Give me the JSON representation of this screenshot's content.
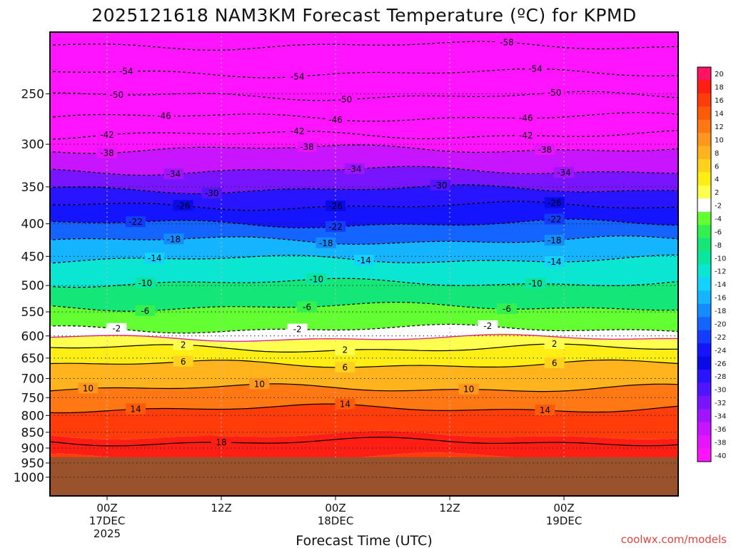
{
  "chart_data": {
    "type": "heatmap",
    "title": "2025121618 NAM3KM Forecast Temperature (ºC) for KPMD",
    "xlabel": "Forecast Time (UTC)",
    "ylabel": "",
    "credit": "coolwx.com/models",
    "x_range_hours": [
      -6,
      60
    ],
    "x_ticks": [
      {
        "hour": 0,
        "lines": [
          "00Z",
          "17DEC",
          "2025"
        ]
      },
      {
        "hour": 12,
        "lines": [
          "12Z"
        ]
      },
      {
        "hour": 24,
        "lines": [
          "00Z",
          "18DEC"
        ]
      },
      {
        "hour": 36,
        "lines": [
          "12Z"
        ]
      },
      {
        "hour": 48,
        "lines": [
          "00Z",
          "19DEC"
        ]
      }
    ],
    "y_scale": "log-pressure",
    "y_range_hpa": [
      1070,
      200
    ],
    "y_ticks": [
      250,
      300,
      350,
      400,
      450,
      500,
      550,
      600,
      650,
      700,
      750,
      800,
      850,
      900,
      950,
      1000
    ],
    "surface_pressure_hpa": 930,
    "colorbar": {
      "labels": [
        20,
        18,
        16,
        14,
        12,
        10,
        8,
        6,
        4,
        2,
        -2,
        -4,
        -6,
        -8,
        -10,
        -12,
        -14,
        -16,
        -18,
        -20,
        -22,
        -24,
        -26,
        -28,
        -30,
        -32,
        -34,
        -36,
        -38,
        -40
      ],
      "colors": [
        "#ff1464",
        "#ff1e14",
        "#ff3c0a",
        "#ff5a0a",
        "#ff7814",
        "#ff961e",
        "#ffb41e",
        "#ffd21e",
        "#ffee14",
        "#ffff50",
        "#ffffff",
        "#64ff32",
        "#32f050",
        "#14e678",
        "#0ae6a0",
        "#0ae6d2",
        "#14d2ff",
        "#14b4ff",
        "#148cff",
        "#1464ff",
        "#143cff",
        "#1414ff",
        "#0a0ae6",
        "#2814ff",
        "#5014ff",
        "#7814ff",
        "#a014ff",
        "#c814ff",
        "#e614ff",
        "#ff14ff"
      ]
    },
    "profile_hour0": [
      {
        "p": 930,
        "t": 18
      },
      {
        "p": 860,
        "t": 18
      },
      {
        "p": 780,
        "t": 14
      },
      {
        "p": 725,
        "t": 10
      },
      {
        "p": 665,
        "t": 6
      },
      {
        "p": 628,
        "t": 2
      },
      {
        "p": 605,
        "t": 0
      },
      {
        "p": 585,
        "t": -2
      },
      {
        "p": 540,
        "t": -6
      },
      {
        "p": 495,
        "t": -10
      },
      {
        "p": 455,
        "t": -14
      },
      {
        "p": 425,
        "t": -18
      },
      {
        "p": 400,
        "t": -22
      },
      {
        "p": 375,
        "t": -26
      },
      {
        "p": 353,
        "t": -30
      },
      {
        "p": 330,
        "t": -34
      },
      {
        "p": 305,
        "t": -38
      },
      {
        "p": 290,
        "t": -42
      },
      {
        "p": 272,
        "t": -46
      },
      {
        "p": 252,
        "t": -50
      },
      {
        "p": 232,
        "t": -54
      },
      {
        "p": 210,
        "t": -58
      }
    ],
    "contours": [
      {
        "t": -58,
        "p": 210,
        "label_hours": [
          42
        ]
      },
      {
        "t": -54,
        "p": 232,
        "label_hours": [
          2,
          20,
          45
        ]
      },
      {
        "t": -50,
        "p": 252,
        "label_hours": [
          1,
          25,
          47
        ]
      },
      {
        "t": -46,
        "p": 272,
        "label_hours": [
          6,
          24,
          44
        ]
      },
      {
        "t": -42,
        "p": 290,
        "label_hours": [
          0,
          20,
          44
        ]
      },
      {
        "t": -38,
        "p": 305,
        "label_hours": [
          0,
          21,
          46
        ]
      },
      {
        "t": -34,
        "p": 330,
        "label_hours": [
          7,
          26,
          48
        ]
      },
      {
        "t": -30,
        "p": 353,
        "label_hours": [
          11,
          35
        ]
      },
      {
        "t": -26,
        "p": 375,
        "label_hours": [
          8,
          24,
          47
        ]
      },
      {
        "t": -22,
        "p": 400,
        "label_hours": [
          3,
          24,
          47
        ]
      },
      {
        "t": -18,
        "p": 425,
        "label_hours": [
          7,
          23,
          47
        ]
      },
      {
        "t": -14,
        "p": 455,
        "label_hours": [
          5,
          27,
          47
        ]
      },
      {
        "t": -10,
        "p": 495,
        "label_hours": [
          4,
          22,
          45
        ]
      },
      {
        "t": -6,
        "p": 540,
        "label_hours": [
          4,
          21,
          42
        ]
      },
      {
        "t": -2,
        "p": 585,
        "label_hours": [
          1,
          20,
          40
        ]
      },
      {
        "t": 2,
        "p": 628,
        "label_hours": [
          8,
          25,
          47
        ]
      },
      {
        "t": 6,
        "p": 665,
        "label_hours": [
          8,
          25,
          47
        ]
      },
      {
        "t": 10,
        "p": 725,
        "label_hours": [
          -2,
          16,
          38
        ]
      },
      {
        "t": 14,
        "p": 780,
        "label_hours": [
          3,
          25,
          46
        ]
      },
      {
        "t": 18,
        "p": 880,
        "label_hours": [
          12
        ]
      }
    ]
  }
}
